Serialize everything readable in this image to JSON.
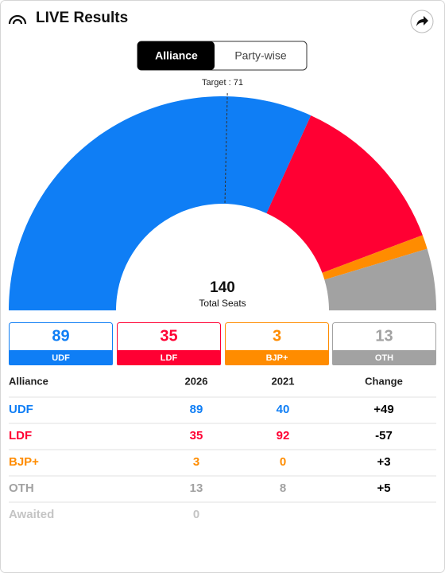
{
  "header": {
    "title": "LIVE Results"
  },
  "tabs": [
    "Alliance",
    "Party-wise"
  ],
  "chart_data": {
    "type": "semi-donut",
    "categories": [
      "UDF",
      "LDF",
      "BJP+",
      "OTH"
    ],
    "values": [
      89,
      35,
      3,
      13
    ],
    "colors": [
      "#0f7ef5",
      "#ff0033",
      "#ff8c00",
      "#a2a2a2"
    ],
    "total": 140,
    "total_label": "Total Seats",
    "target": {
      "value": 71,
      "label": "Target : 71"
    }
  },
  "table": {
    "header": [
      "Alliance",
      "2026",
      "2021",
      "Change"
    ],
    "rows": [
      [
        "UDF",
        "89",
        "40",
        "+49"
      ],
      [
        "LDF",
        "35",
        "92",
        "-57"
      ],
      [
        "BJP+",
        "3",
        "0",
        "+3"
      ],
      [
        "OTH",
        "13",
        "8",
        "+5"
      ],
      [
        "Awaited",
        "0",
        "",
        ""
      ]
    ]
  }
}
